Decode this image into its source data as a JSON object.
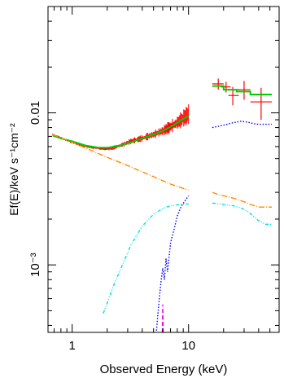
{
  "chart_data": {
    "type": "scatter",
    "xlabel": "Observed Energy (keV)",
    "ylabel": "Ef(E)/keV s⁻¹cm⁻²",
    "x_scale": "log",
    "y_scale": "log",
    "xlim": [
      0.62,
      60
    ],
    "ylim": [
      0.00036,
      0.05
    ],
    "x_ticks": [
      {
        "value": 1,
        "label": "1"
      },
      {
        "value": 10,
        "label": "10"
      }
    ],
    "y_ticks": [
      {
        "value": 0.001,
        "label": "10⁻³"
      },
      {
        "value": 0.01,
        "label": "0.01"
      }
    ],
    "grid": false,
    "colors": {
      "data_red": "#ff0000",
      "model_green": "#00cc00",
      "powerlaw_orange": "#ff8c00",
      "cyan_component": "#00e0e0",
      "blue_component": "#0000ff",
      "line_magenta": "#ff00ff"
    },
    "series": [
      {
        "role": "observed-data-low-energy",
        "style": "noisy-crosses",
        "color": "#ff0000",
        "x": [
          0.68,
          0.75,
          0.85,
          1.0,
          1.2,
          1.5,
          1.9,
          2.1,
          2.6,
          3.2,
          4.0,
          5.0,
          6.0,
          7.0,
          8.0,
          9.0,
          10.0
        ],
        "y": [
          0.0072,
          0.007,
          0.0067,
          0.0064,
          0.0061,
          0.0059,
          0.0058,
          0.0058,
          0.0061,
          0.0065,
          0.0068,
          0.0072,
          0.0076,
          0.0081,
          0.0086,
          0.0092,
          0.0098
        ]
      },
      {
        "role": "observed-data-high-energy",
        "style": "crosses",
        "color": "#ff0000",
        "x": [
          18,
          21,
          24,
          30,
          42
        ],
        "y": [
          0.0155,
          0.0148,
          0.013,
          0.0142,
          0.0118
        ],
        "xerr": [
          [
            2,
            2,
            2,
            4,
            8
          ],
          [
            2,
            2,
            3,
            4,
            10
          ]
        ],
        "yerr": [
          [
            0.0013,
            0.0012,
            0.0018,
            0.002,
            0.0028
          ],
          [
            0.0013,
            0.0012,
            0.0018,
            0.002,
            0.0028
          ]
        ]
      },
      {
        "role": "total-model",
        "style": "solid",
        "color": "#00cc00",
        "x": [
          0.68,
          0.8,
          1.0,
          1.3,
          1.7,
          2.0,
          2.6,
          3.2,
          4.0,
          5.0,
          6.0,
          7.0,
          8.0,
          9.0,
          10.0
        ],
        "y": [
          0.0071,
          0.0068,
          0.0065,
          0.0061,
          0.0059,
          0.0059,
          0.0061,
          0.0064,
          0.0068,
          0.0072,
          0.0076,
          0.0081,
          0.0086,
          0.0091,
          0.0095
        ]
      },
      {
        "role": "total-model-high-energy",
        "style": "histogram",
        "color": "#00cc00",
        "x": [
          16,
          20,
          20,
          26,
          26,
          34,
          34,
          52
        ],
        "y": [
          0.015,
          0.015,
          0.0142,
          0.0142,
          0.0138,
          0.0138,
          0.0132,
          0.0132
        ]
      },
      {
        "role": "powerlaw-component",
        "style": "dash-dot",
        "color": "#ff8c00",
        "x": [
          0.68,
          1.0,
          2.0,
          3.0,
          5.0,
          7.0,
          10.0
        ],
        "y": [
          0.0072,
          0.0064,
          0.0051,
          0.0045,
          0.0038,
          0.0034,
          0.0031
        ]
      },
      {
        "role": "powerlaw-component-high-energy",
        "style": "dash-dot",
        "color": "#ff8c00",
        "x": [
          16,
          18,
          22,
          26,
          30,
          34,
          40,
          52
        ],
        "y": [
          0.003,
          0.0029,
          0.0028,
          0.0027,
          0.0026,
          0.0025,
          0.0024,
          0.0024
        ]
      },
      {
        "role": "cyan-component",
        "style": "dash-dot-dot",
        "color": "#00e0e0",
        "x": [
          1.85,
          2.0,
          2.3,
          2.7,
          3.2,
          4.0,
          5.0,
          6.0,
          7.0,
          8.0,
          9.0,
          10.0
        ],
        "y": [
          0.00048,
          0.00056,
          0.00075,
          0.001,
          0.00135,
          0.0018,
          0.00215,
          0.00235,
          0.00245,
          0.00248,
          0.0025,
          0.00252
        ]
      },
      {
        "role": "cyan-component-high-energy",
        "style": "dash-dot-dot",
        "color": "#00e0e0",
        "x": [
          16,
          20,
          24,
          28,
          32,
          36,
          40,
          46,
          52
        ],
        "y": [
          0.00255,
          0.0025,
          0.00245,
          0.00238,
          0.00225,
          0.0021,
          0.00195,
          0.00185,
          0.00185
        ]
      },
      {
        "role": "blue-component",
        "style": "dotted",
        "color": "#0000ff",
        "x": [
          5.3,
          5.6,
          5.8,
          6.0,
          6.2,
          6.4,
          6.6,
          7.0,
          7.5,
          8.0,
          8.6,
          9.2,
          10.0
        ],
        "y": [
          0.00037,
          0.0006,
          0.00078,
          0.00095,
          0.0008,
          0.0011,
          0.0009,
          0.0014,
          0.0017,
          0.0021,
          0.0024,
          0.0026,
          0.00285
        ]
      },
      {
        "role": "blue-component-high-energy",
        "style": "dotted",
        "color": "#0000ff",
        "x": [
          16,
          20,
          24,
          28,
          32,
          36,
          40,
          46,
          52
        ],
        "y": [
          0.008,
          0.0083,
          0.0086,
          0.0088,
          0.0087,
          0.0085,
          0.0084,
          0.0084,
          0.0084
        ]
      },
      {
        "role": "magenta-line",
        "style": "dashed",
        "color": "#ff00ff",
        "x": [
          5.95,
          6.0,
          6.05
        ],
        "y": [
          0.00036,
          0.00055,
          0.00036
        ]
      }
    ]
  }
}
